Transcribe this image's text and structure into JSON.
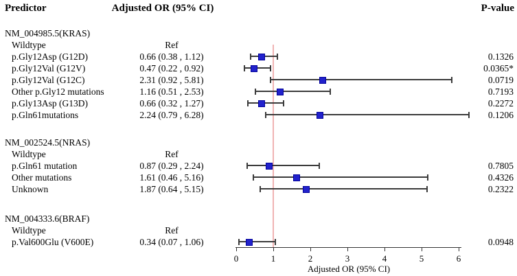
{
  "header": {
    "predictor": "Predictor",
    "or_ci": "Adjusted OR (95% CI)",
    "p_value": "P-value"
  },
  "colors": {
    "marker_fill": "#2222cc",
    "marker_border": "#000099",
    "reference_line": "#f0b2b2",
    "error_bar": "#3a3a3a",
    "axis": "#333333",
    "text": "#000000"
  },
  "chart_data": {
    "type": "scatter",
    "subtype": "forest-plot",
    "title": "",
    "xlabel": "Adjusted OR (95% CI)",
    "x_ticks": [
      0,
      1,
      2,
      3,
      4,
      5,
      6
    ],
    "xlim": [
      0,
      6.3
    ],
    "reference_line_x": 1,
    "legend": "none",
    "grid": false,
    "columns": [
      "Predictor",
      "Adjusted OR (95% CI)",
      "P-value"
    ],
    "groups": [
      {
        "gene": "NM_004985.5(KRAS)",
        "rows": [
          {
            "label": "Wildtype",
            "or_text": "Ref",
            "is_ref": true,
            "p": ""
          },
          {
            "label": "p.Gly12Asp (G12D)",
            "or_text": "0.66 (0.38 , 1.12)",
            "est": 0.66,
            "lo": 0.38,
            "hi": 1.12,
            "p": "0.1326"
          },
          {
            "label": "p.Gly12Val (G12V)",
            "or_text": "0.47 (0.22 , 0.92)",
            "est": 0.47,
            "lo": 0.22,
            "hi": 0.92,
            "p": "0.0365*"
          },
          {
            "label": "p.Gly12Val (G12C)",
            "or_text": "2.31 (0.92 , 5.81)",
            "est": 2.31,
            "lo": 0.92,
            "hi": 5.81,
            "p": "0.0719"
          },
          {
            "label": "Other p.Gly12 mutations",
            "or_text": "1.16 (0.51 , 2.53)",
            "est": 1.16,
            "lo": 0.51,
            "hi": 2.53,
            "p": "0.7193"
          },
          {
            "label": "p.Gly13Asp (G13D)",
            "or_text": "0.66 (0.32 , 1.27)",
            "est": 0.66,
            "lo": 0.32,
            "hi": 1.27,
            "p": "0.2272"
          },
          {
            "label": "p.Gln61mutations",
            "or_text": "2.24 (0.79 , 6.28)",
            "est": 2.24,
            "lo": 0.79,
            "hi": 6.28,
            "p": "0.1206"
          }
        ]
      },
      {
        "gene": "NM_002524.5(NRAS)",
        "rows": [
          {
            "label": "Wildtype",
            "or_text": "Ref",
            "is_ref": true,
            "p": ""
          },
          {
            "label": "p.Gln61 mutation",
            "or_text": "0.87 (0.29 , 2.24)",
            "est": 0.87,
            "lo": 0.29,
            "hi": 2.24,
            "p": "0.7805"
          },
          {
            "label": "Other mutations",
            "or_text": "1.61 (0.46 , 5.16)",
            "est": 1.61,
            "lo": 0.46,
            "hi": 5.16,
            "p": "0.4326"
          },
          {
            "label": "Unknown",
            "or_text": "1.87 (0.64 , 5.15)",
            "est": 1.87,
            "lo": 0.64,
            "hi": 5.15,
            "p": "0.2322"
          }
        ]
      },
      {
        "gene": "NM_004333.6(BRAF)",
        "rows": [
          {
            "label": "Wildtype",
            "or_text": "Ref",
            "is_ref": true,
            "p": ""
          },
          {
            "label": "p.Val600Glu (V600E)",
            "or_text": "0.34 (0.07 , 1.06)",
            "est": 0.34,
            "lo": 0.07,
            "hi": 1.06,
            "p": "0.0948"
          }
        ]
      }
    ]
  }
}
